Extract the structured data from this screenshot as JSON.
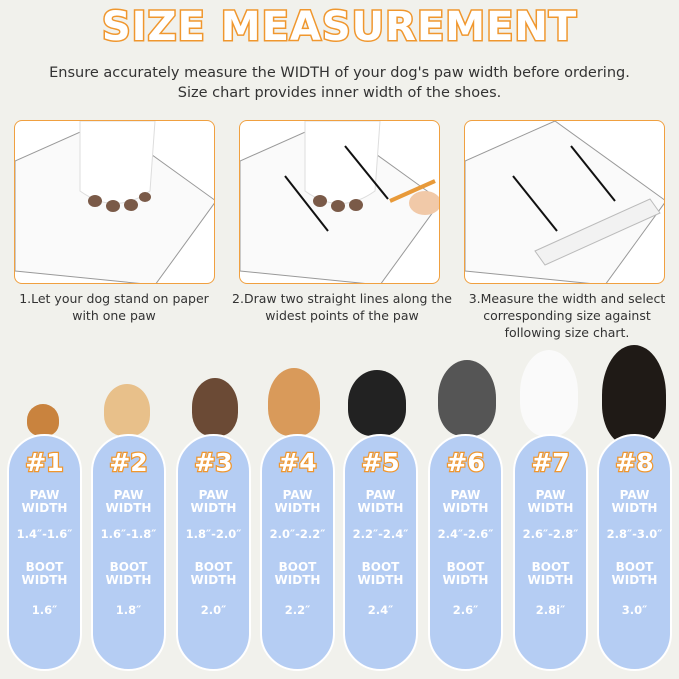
{
  "title": "SIZE MEASUREMENT",
  "subtitle": [
    "Ensure accurately measure the WIDTH of your dog's paw width before ordering.",
    "Size chart provides inner width of the shoes."
  ],
  "steps": [
    {
      "caption": "1.Let your dog stand on paper with one paw"
    },
    {
      "caption": "2.Draw two straight lines along the widest points of the paw"
    },
    {
      "caption": "3.Measure the width and select corresponding size against following size chart."
    }
  ],
  "colors": {
    "accent": "#f0972e",
    "pill": "#b5cdf3",
    "background": "#f1f1ec"
  },
  "sizes": [
    {
      "label": "#1",
      "paw_label": "PAW WIDTH",
      "paw": "1.4″-1.6″",
      "boot_label": "BOOT WIDTH",
      "boot": "1.6″"
    },
    {
      "label": "#2",
      "paw_label": "PAW WIDTH",
      "paw": "1.6″-1.8″",
      "boot_label": "BOOT WIDTH",
      "boot": "1.8″"
    },
    {
      "label": "#3",
      "paw_label": "PAW WIDTH",
      "paw": "1.8″-2.0″",
      "boot_label": "BOOT WIDTH",
      "boot": "2.0″"
    },
    {
      "label": "#4",
      "paw_label": "PAW WIDTH",
      "paw": "2.0″-2.2″",
      "boot_label": "BOOT WIDTH",
      "boot": "2.2″"
    },
    {
      "label": "#5",
      "paw_label": "PAW WIDTH",
      "paw": "2.2″-2.4″",
      "boot_label": "BOOT WIDTH",
      "boot": "2.4″"
    },
    {
      "label": "#6",
      "paw_label": "PAW WIDTH",
      "paw": "2.4″-2.6″",
      "boot_label": "BOOT WIDTH",
      "boot": "2.6″"
    },
    {
      "label": "#7",
      "paw_label": "PAW WIDTH",
      "paw": "2.6″-2.8″",
      "boot_label": "BOOT WIDTH",
      "boot": "2.8i″"
    },
    {
      "label": "#8",
      "paw_label": "PAW WIDTH",
      "paw": "2.8″-3.0″",
      "boot_label": "BOOT WIDTH",
      "boot": "3.0″"
    }
  ]
}
